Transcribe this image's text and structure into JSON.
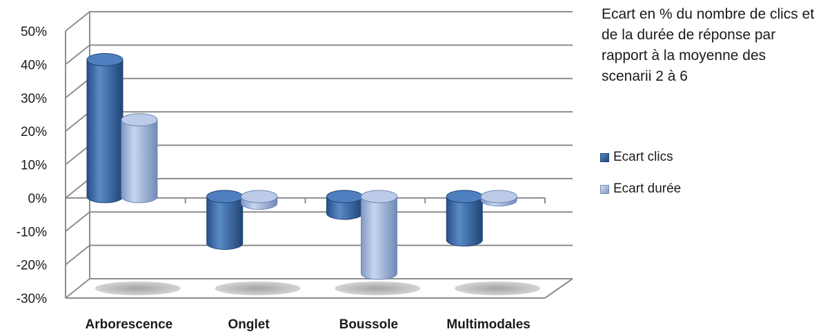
{
  "chart_data": {
    "type": "bar",
    "style": "3d-cylinder",
    "title": "Ecart en % du nombre de clics et de la durée de réponse par rapport à la moyenne des scenarii 2 à 6",
    "categories": [
      "Arborescence",
      "Onglet",
      "Boussole",
      "Multimodales"
    ],
    "series": [
      {
        "name": "Ecart clics",
        "color": "#3a6aa7",
        "values": [
          41,
          -14,
          -5,
          -13
        ]
      },
      {
        "name": "Ecart durée",
        "color": "#9fb5dc",
        "values": [
          23,
          -2,
          -23,
          -1
        ]
      }
    ],
    "yticks": [
      "50%",
      "40%",
      "30%",
      "20%",
      "10%",
      "0%",
      "-10%",
      "-20%",
      "-30%"
    ],
    "ylim": [
      -30,
      50
    ],
    "grid": true,
    "legend": "right"
  }
}
